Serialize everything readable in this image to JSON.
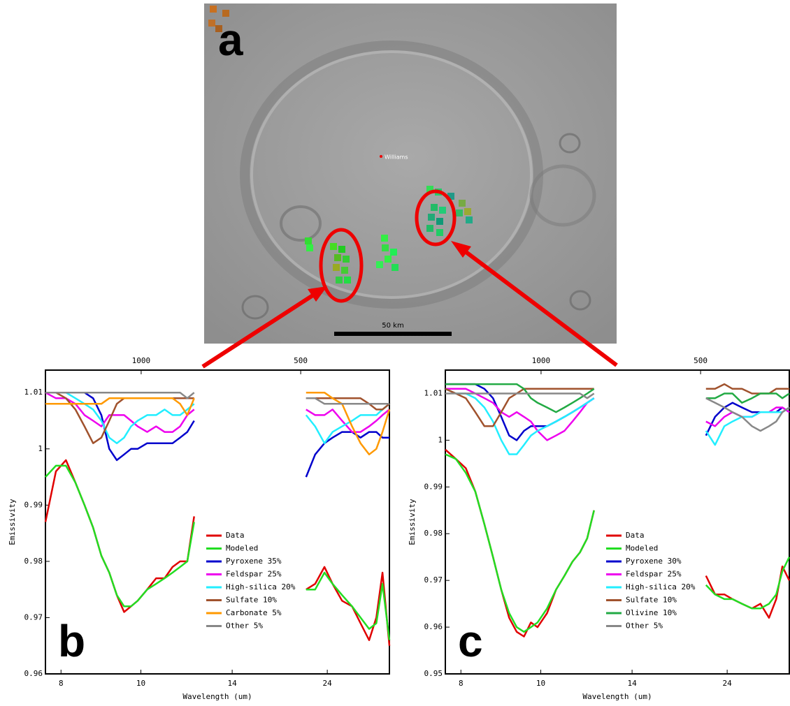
{
  "panel_a": {
    "label": "a",
    "site_label": "Williams",
    "scale_label": "50 km"
  },
  "chart_data": [
    {
      "type": "line",
      "panel_label": "b",
      "x_label": "Wavelength (um)",
      "y_label": "Emissivity",
      "xscale": "reciprocal",
      "xlim": [
        7.7,
        45
      ],
      "xticks": [
        8,
        10,
        14,
        24
      ],
      "x2lim": [
        1300,
        222
      ],
      "x2ticks": [
        1000,
        500
      ],
      "ylim": [
        0.96,
        1.014
      ],
      "yticks": [
        0.96,
        0.97,
        0.98,
        0.99,
        1,
        1.01
      ],
      "x": [
        7.7,
        7.9,
        8.1,
        8.3,
        8.5,
        8.7,
        8.9,
        9.1,
        9.3,
        9.5,
        9.7,
        9.9,
        10.2,
        10.5,
        10.8,
        11.1,
        11.4,
        11.7,
        12.0,
        16,
        20.7,
        22,
        23.5,
        25,
        27,
        29.5,
        32,
        35,
        38,
        41,
        45
      ],
      "series": [
        {
          "name": "Data",
          "color": "#e00000",
          "values": [
            0.987,
            0.996,
            0.998,
            0.994,
            0.99,
            0.986,
            0.981,
            0.978,
            0.974,
            0.971,
            0.972,
            0.973,
            0.975,
            0.977,
            0.977,
            0.979,
            0.98,
            0.98,
            0.988,
            null,
            0.975,
            0.976,
            0.979,
            0.976,
            0.973,
            0.972,
            0.969,
            0.966,
            0.97,
            0.978,
            0.965
          ]
        },
        {
          "name": "Modeled",
          "color": "#22dd22",
          "values": [
            0.995,
            0.997,
            0.997,
            0.994,
            0.99,
            0.986,
            0.981,
            0.978,
            0.974,
            0.972,
            0.972,
            0.973,
            0.975,
            0.976,
            0.977,
            0.978,
            0.979,
            0.98,
            0.987,
            null,
            0.975,
            0.975,
            0.978,
            0.976,
            0.974,
            0.972,
            0.97,
            0.968,
            0.969,
            0.976,
            0.966
          ]
        },
        {
          "name": "Pyroxene 35%",
          "color": "#0000cc",
          "values": [
            1.01,
            1.01,
            1.01,
            1.01,
            1.01,
            1.009,
            1.006,
            1.0,
            0.998,
            0.999,
            1.0,
            1.0,
            1.001,
            1.001,
            1.001,
            1.001,
            1.002,
            1.003,
            1.005,
            null,
            0.995,
            0.999,
            1.001,
            1.002,
            1.003,
            1.003,
            1.002,
            1.003,
            1.003,
            1.002,
            1.002
          ]
        },
        {
          "name": "Feldspar 25%",
          "color": "#ee00ee",
          "values": [
            1.01,
            1.009,
            1.009,
            1.008,
            1.006,
            1.005,
            1.004,
            1.006,
            1.006,
            1.006,
            1.005,
            1.004,
            1.003,
            1.004,
            1.003,
            1.003,
            1.004,
            1.006,
            1.007,
            null,
            1.007,
            1.006,
            1.006,
            1.007,
            1.005,
            1.003,
            1.003,
            1.004,
            1.005,
            1.006,
            1.007
          ]
        },
        {
          "name": "High-silica 20%",
          "color": "#22eeff",
          "values": [
            1.01,
            1.01,
            1.01,
            1.009,
            1.008,
            1.007,
            1.005,
            1.002,
            1.001,
            1.002,
            1.004,
            1.005,
            1.006,
            1.006,
            1.007,
            1.006,
            1.006,
            1.007,
            1.008,
            null,
            1.006,
            1.004,
            1.001,
            1.003,
            1.004,
            1.005,
            1.006,
            1.006,
            1.006,
            1.007,
            1.008
          ]
        },
        {
          "name": "Sulfate 10%",
          "color": "#a0522d",
          "values": [
            1.01,
            1.01,
            1.009,
            1.007,
            1.004,
            1.001,
            1.002,
            1.005,
            1.008,
            1.009,
            1.009,
            1.009,
            1.009,
            1.009,
            1.009,
            1.009,
            1.009,
            1.009,
            1.009,
            null,
            1.009,
            1.009,
            1.009,
            1.009,
            1.009,
            1.009,
            1.009,
            1.008,
            1.007,
            1.007,
            1.008
          ]
        },
        {
          "name": "Carbonate 5%",
          "color": "#ff9900",
          "values": [
            1.008,
            1.008,
            1.008,
            1.008,
            1.008,
            1.008,
            1.008,
            1.009,
            1.009,
            1.009,
            1.009,
            1.009,
            1.009,
            1.009,
            1.009,
            1.009,
            1.008,
            1.006,
            1.009,
            null,
            1.01,
            1.01,
            1.01,
            1.009,
            1.008,
            1.004,
            1.001,
            0.999,
            1.0,
            1.003,
            1.007
          ]
        },
        {
          "name": "Other 5%",
          "color": "#888888",
          "values": [
            1.01,
            1.01,
            1.01,
            1.01,
            1.01,
            1.01,
            1.01,
            1.01,
            1.01,
            1.01,
            1.01,
            1.01,
            1.01,
            1.01,
            1.01,
            1.01,
            1.01,
            1.009,
            1.01,
            null,
            1.009,
            1.009,
            1.008,
            1.008,
            1.008,
            1.008,
            1.008,
            1.008,
            1.008,
            1.008,
            1.008
          ]
        }
      ]
    },
    {
      "type": "line",
      "panel_label": "c",
      "x_label": "Wavelength (um)",
      "y_label": "Emissivity",
      "xscale": "reciprocal",
      "xlim": [
        7.7,
        45
      ],
      "xticks": [
        8,
        10,
        14,
        24
      ],
      "x2lim": [
        1300,
        222
      ],
      "x2ticks": [
        1000,
        500
      ],
      "ylim": [
        0.95,
        1.015
      ],
      "yticks": [
        0.95,
        0.96,
        0.97,
        0.98,
        0.99,
        1,
        1.01
      ],
      "x": [
        7.7,
        7.9,
        8.1,
        8.3,
        8.5,
        8.7,
        8.9,
        9.1,
        9.3,
        9.5,
        9.7,
        9.9,
        10.2,
        10.5,
        10.8,
        11.1,
        11.4,
        11.7,
        12.0,
        16,
        20.7,
        22,
        23.5,
        25,
        27,
        29.5,
        32,
        35,
        38,
        41,
        45
      ],
      "series": [
        {
          "name": "Data",
          "color": "#e00000",
          "values": [
            0.998,
            0.996,
            0.994,
            0.989,
            0.982,
            0.975,
            0.968,
            0.962,
            0.959,
            0.958,
            0.961,
            0.96,
            0.963,
            0.968,
            0.971,
            0.974,
            0.976,
            0.979,
            0.985,
            null,
            0.971,
            0.967,
            0.967,
            0.966,
            0.965,
            0.964,
            0.965,
            0.962,
            0.966,
            0.973,
            0.97
          ]
        },
        {
          "name": "Modeled",
          "color": "#22dd22",
          "values": [
            0.997,
            0.996,
            0.993,
            0.989,
            0.982,
            0.975,
            0.968,
            0.963,
            0.96,
            0.959,
            0.96,
            0.961,
            0.964,
            0.968,
            0.971,
            0.974,
            0.976,
            0.979,
            0.985,
            null,
            0.969,
            0.967,
            0.966,
            0.966,
            0.965,
            0.964,
            0.964,
            0.965,
            0.967,
            0.972,
            0.975
          ]
        },
        {
          "name": "Pyroxene 30%",
          "color": "#0000cc",
          "values": [
            1.012,
            1.012,
            1.012,
            1.012,
            1.011,
            1.009,
            1.005,
            1.001,
            1.0,
            1.002,
            1.003,
            1.003,
            1.003,
            1.004,
            1.005,
            1.006,
            1.007,
            1.008,
            1.009,
            null,
            1.001,
            1.005,
            1.007,
            1.008,
            1.007,
            1.006,
            1.006,
            1.006,
            1.006,
            1.007,
            1.006
          ]
        },
        {
          "name": "Feldspar 25%",
          "color": "#ee00ee",
          "values": [
            1.011,
            1.011,
            1.011,
            1.01,
            1.009,
            1.008,
            1.006,
            1.005,
            1.006,
            1.005,
            1.004,
            1.002,
            1.0,
            1.001,
            1.002,
            1.004,
            1.006,
            1.008,
            1.009,
            null,
            1.004,
            1.003,
            1.005,
            1.006,
            1.005,
            1.005,
            1.006,
            1.006,
            1.007,
            1.007,
            1.006
          ]
        },
        {
          "name": "High-silica 20%",
          "color": "#22eeff",
          "values": [
            1.011,
            1.01,
            1.01,
            1.009,
            1.007,
            1.004,
            1.0,
            0.997,
            0.997,
            0.999,
            1.001,
            1.002,
            1.003,
            1.004,
            1.005,
            1.006,
            1.007,
            1.008,
            1.009,
            null,
            1.002,
            0.999,
            1.003,
            1.004,
            1.005,
            1.005,
            1.006,
            1.006,
            1.006,
            1.006,
            1.007
          ]
        },
        {
          "name": "Sulfate 10%",
          "color": "#a0522d",
          "values": [
            1.011,
            1.01,
            1.009,
            1.006,
            1.003,
            1.003,
            1.006,
            1.009,
            1.01,
            1.011,
            1.011,
            1.011,
            1.011,
            1.011,
            1.011,
            1.011,
            1.011,
            1.011,
            1.011,
            null,
            1.011,
            1.011,
            1.012,
            1.011,
            1.011,
            1.01,
            1.01,
            1.01,
            1.011,
            1.011,
            1.011
          ]
        },
        {
          "name": "Olivine 10%",
          "color": "#22aa44",
          "values": [
            1.012,
            1.012,
            1.012,
            1.012,
            1.012,
            1.012,
            1.012,
            1.012,
            1.012,
            1.011,
            1.009,
            1.008,
            1.007,
            1.006,
            1.007,
            1.008,
            1.009,
            1.01,
            1.011,
            null,
            1.009,
            1.009,
            1.01,
            1.01,
            1.008,
            1.009,
            1.01,
            1.01,
            1.01,
            1.009,
            1.01
          ]
        },
        {
          "name": "Other 5%",
          "color": "#888888",
          "values": [
            1.01,
            1.01,
            1.01,
            1.01,
            1.01,
            1.01,
            1.01,
            1.01,
            1.01,
            1.01,
            1.01,
            1.01,
            1.01,
            1.01,
            1.01,
            1.01,
            1.01,
            1.009,
            1.01,
            null,
            1.009,
            1.008,
            1.007,
            1.006,
            1.005,
            1.003,
            1.002,
            1.003,
            1.004,
            1.006,
            1.007
          ]
        }
      ]
    }
  ]
}
